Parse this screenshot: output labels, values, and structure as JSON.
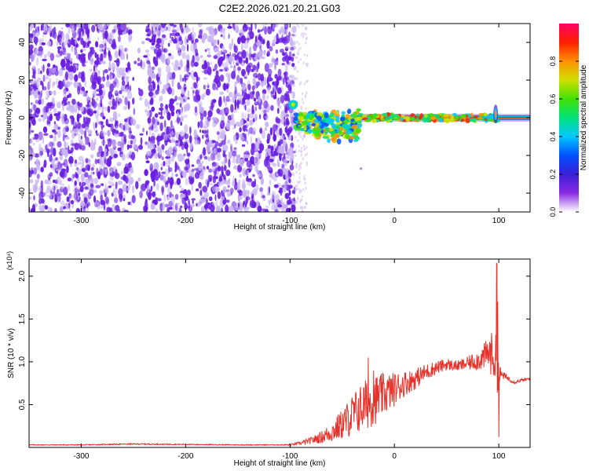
{
  "title": "C2E2.2026.021.20.21.G03",
  "colors": {
    "background": "#ffffff",
    "axis": "#000000",
    "snr_line": "#e8312a",
    "noise_purple": "#6a20e0",
    "noise_light": "#c8b4f2"
  },
  "chart_data": [
    {
      "type": "heatmap",
      "name": "spectrogram",
      "xlabel": "Height of straight line (km)",
      "ylabel": "Frequency (Hz)",
      "xlim": [
        -350,
        130
      ],
      "ylim": [
        -50,
        50
      ],
      "xticks": [
        -300,
        -200,
        -100,
        0,
        100
      ],
      "yticks": [
        -40,
        -20,
        0,
        20,
        40
      ],
      "noise_region": [
        -350,
        -95
      ],
      "signal": {
        "baseline_freq_hz": 0,
        "onset_km": -95,
        "burst_km": 97,
        "cluster_center_km": -70,
        "cluster_center_hz": -4,
        "point_source": [
          -97,
          7
        ],
        "isolated_point": [
          -32,
          -27
        ]
      },
      "colorbar": {
        "label": "Normalized spectral amplitude",
        "range": [
          0,
          1
        ],
        "ticks": [
          "0.0",
          "0.2",
          "0.4",
          "0.6",
          "0.8"
        ],
        "tick_values": [
          0,
          0.2,
          0.4,
          0.6,
          0.8
        ],
        "colormap": [
          "#ffffff",
          "#8a2be2",
          "#3a1fd8",
          "#0050ff",
          "#00c8ff",
          "#00e27a",
          "#40e000",
          "#d0e000",
          "#ff9000",
          "#ff2000",
          "#ff0066"
        ]
      }
    },
    {
      "type": "line",
      "name": "snr",
      "xlabel": "Height of straight line (km)",
      "ylabel": "SNR (10 * v/v)",
      "y_multiplier": "(x10⁴)",
      "xlim": [
        -350,
        130
      ],
      "ylim": [
        0,
        2.2
      ],
      "xticks": [
        -300,
        -200,
        -100,
        0,
        100
      ],
      "yticks": [
        "0.5",
        "1.0",
        "1.5",
        "2.0"
      ],
      "ytick_values": [
        0.5,
        1.0,
        1.5,
        2.0
      ],
      "baseline": 0.03,
      "series": [
        {
          "name": "SNR",
          "keypoints_x": [
            -350,
            -300,
            -250,
            -200,
            -150,
            -110,
            -100,
            -90,
            -80,
            -70,
            -60,
            -50,
            -40,
            -30,
            -20,
            -10,
            0,
            10,
            20,
            30,
            40,
            50,
            60,
            70,
            80,
            85,
            90,
            95,
            98,
            100,
            103,
            110,
            115,
            120,
            130
          ],
          "keypoints_y": [
            0.03,
            0.03,
            0.04,
            0.035,
            0.03,
            0.03,
            0.03,
            0.05,
            0.08,
            0.12,
            0.18,
            0.27,
            0.38,
            0.48,
            0.55,
            0.62,
            0.68,
            0.75,
            0.8,
            0.88,
            0.93,
            0.97,
            0.95,
            0.98,
            1.02,
            1.05,
            1.1,
            1.08,
            0.95,
            0.85,
            0.85,
            0.8,
            0.76,
            0.78,
            0.8
          ],
          "noise_amplitude": [
            0.005,
            0.005,
            0.007,
            0.005,
            0.005,
            0.005,
            0.01,
            0.02,
            0.04,
            0.07,
            0.12,
            0.18,
            0.25,
            0.3,
            0.3,
            0.25,
            0.2,
            0.15,
            0.12,
            0.1,
            0.08,
            0.07,
            0.06,
            0.08,
            0.12,
            0.15,
            0.2,
            0.3,
            0.35,
            0.15,
            0.05,
            0.03,
            0.02,
            0.02,
            0.02
          ],
          "peaks": [
            [
              -25,
              1.05
            ],
            [
              -20,
              0.9
            ],
            [
              98,
              2.15
            ],
            [
              99,
              1.7
            ],
            [
              100,
              0.12
            ]
          ]
        }
      ]
    }
  ]
}
